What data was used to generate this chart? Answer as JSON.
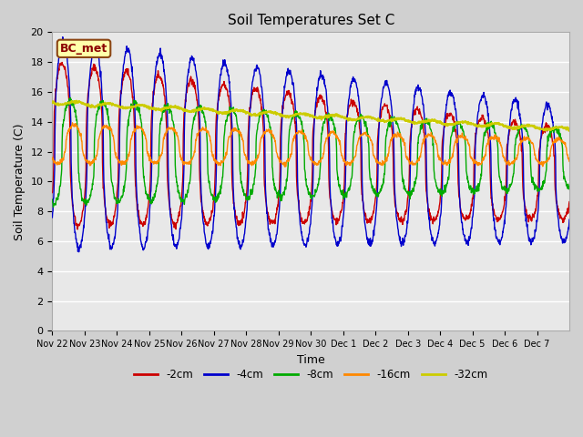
{
  "title": "Soil Temperatures Set C",
  "xlabel": "Time",
  "ylabel": "Soil Temperature (C)",
  "ylim": [
    0,
    20
  ],
  "legend_label": "BC_met",
  "line_colors": {
    "-2cm": "#cc0000",
    "-4cm": "#0000cc",
    "-8cm": "#00aa00",
    "-16cm": "#ff8800",
    "-32cm": "#cccc00"
  },
  "legend_colors": [
    "#cc0000",
    "#0000cc",
    "#00aa00",
    "#ff8800",
    "#cccc00"
  ],
  "legend_labels": [
    "-2cm",
    "-4cm",
    "-8cm",
    "-16cm",
    "-32cm"
  ],
  "xtick_labels": [
    "Nov 22",
    "Nov 23",
    "Nov 24",
    "Nov 25",
    "Nov 26",
    "Nov 27",
    "Nov 28",
    "Nov 29",
    "Nov 30",
    "Dec 1",
    "Dec 2",
    "Dec 3",
    "Dec 4",
    "Dec 5",
    "Dec 6",
    "Dec 7"
  ],
  "ytick_vals": [
    0,
    2,
    4,
    6,
    8,
    10,
    12,
    14,
    16,
    18,
    20
  ],
  "days": 16
}
